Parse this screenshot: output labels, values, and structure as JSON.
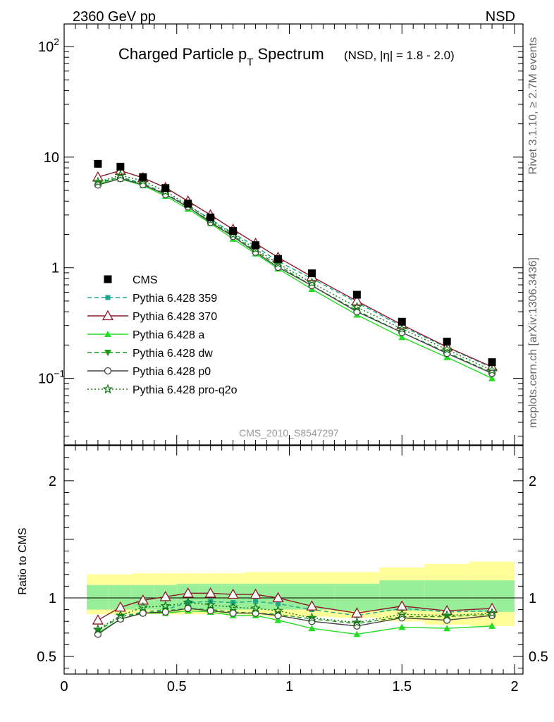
{
  "header": {
    "left": "2360 GeV pp",
    "right": "NSD"
  },
  "side_labels": {
    "rivet": "Rivet 3.1.10, ≥ 2.7M events",
    "mcplots": "mcplots.cern.ch [arXiv:1306.3436]"
  },
  "plot": {
    "title_main": "Charged Particle p",
    "title_sub": "T",
    "title_tail": " Spectrum",
    "title_note": "(NSD, |η| = 1.8 - 2.0)",
    "watermark": "CMS_2010_S8547297",
    "ratio_ylabel": "Ratio to CMS"
  },
  "ticks": {
    "top_y": [
      {
        "value": 100,
        "label": "10",
        "sup": "2"
      },
      {
        "value": 10,
        "label": "10",
        "sup": ""
      },
      {
        "value": 1,
        "label": "1",
        "sup": ""
      },
      {
        "value": 0.1,
        "label": "10",
        "sup": "−1"
      }
    ],
    "ratio_y": [
      {
        "value": 2,
        "label": "2"
      },
      {
        "value": 1,
        "label": "1"
      },
      {
        "value": 0.5,
        "label": "0.5"
      }
    ],
    "x": [
      {
        "value": 0,
        "label": "0"
      },
      {
        "value": 0.5,
        "label": "0.5"
      },
      {
        "value": 1,
        "label": "1"
      },
      {
        "value": 1.5,
        "label": "1.5"
      },
      {
        "value": 2,
        "label": "2"
      }
    ]
  },
  "chart_data": {
    "type": "line",
    "title": "Charged Particle pT Spectrum (NSD, |η| = 1.8 - 2.0)",
    "xlim": [
      0,
      2.05
    ],
    "ylim": [
      0.025,
      160
    ],
    "yscale": "log",
    "ratio_ylim": [
      0.35,
      2.3
    ],
    "x": [
      0.15,
      0.25,
      0.35,
      0.45,
      0.55,
      0.65,
      0.75,
      0.85,
      0.95,
      1.1,
      1.3,
      1.5,
      1.7,
      1.9
    ],
    "bin_edges": [
      0.1,
      0.2,
      0.3,
      0.4,
      0.5,
      0.6,
      0.7,
      0.8,
      0.9,
      1.0,
      1.2,
      1.4,
      1.6,
      1.8,
      2.0
    ],
    "data": {
      "name": "CMS",
      "color": "#000000",
      "values": [
        8.7,
        8.2,
        6.6,
        5.25,
        3.8,
        2.85,
        2.15,
        1.6,
        1.2,
        0.89,
        0.57,
        0.325,
        0.215,
        0.14
      ]
    },
    "series": [
      {
        "name": "Pythia 6.428 359",
        "color": "#19a98f",
        "style": "dashed",
        "marker": "square",
        "values": [
          5.9,
          6.6,
          5.8,
          4.65,
          3.65,
          2.75,
          2.05,
          1.56,
          1.14,
          0.8,
          0.485,
          0.295,
          0.19,
          0.125
        ],
        "ratio": [
          0.72,
          0.84,
          0.88,
          0.9,
          0.96,
          0.97,
          0.96,
          0.97,
          0.95,
          0.9,
          0.85,
          0.91,
          0.88,
          0.89
        ]
      },
      {
        "name": "Pythia 6.428 370",
        "color": "#8b1a2a",
        "style": "solid",
        "marker": "triangle-open",
        "values": [
          6.6,
          7.55,
          6.5,
          5.3,
          4.0,
          3.0,
          2.22,
          1.66,
          1.24,
          0.83,
          0.5,
          0.305,
          0.192,
          0.127
        ],
        "ratio": [
          0.81,
          0.92,
          0.98,
          1.01,
          1.04,
          1.04,
          1.03,
          1.03,
          1.0,
          0.93,
          0.87,
          0.93,
          0.89,
          0.91
        ]
      },
      {
        "name": "Pythia 6.428 a",
        "color": "#22dd22",
        "style": "solid",
        "marker": "triangle",
        "values": [
          5.75,
          6.35,
          5.55,
          4.45,
          3.4,
          2.52,
          1.82,
          1.34,
          0.98,
          0.64,
          0.375,
          0.235,
          0.155,
          0.1
        ],
        "ratio": [
          0.7,
          0.82,
          0.87,
          0.87,
          0.89,
          0.88,
          0.85,
          0.85,
          0.81,
          0.74,
          0.69,
          0.75,
          0.74,
          0.76
        ]
      },
      {
        "name": "Pythia 6.428 dw",
        "color": "#1a9a1a",
        "style": "dashed",
        "marker": "triangle-down",
        "values": [
          5.85,
          6.55,
          5.7,
          4.65,
          3.55,
          2.62,
          1.95,
          1.42,
          1.05,
          0.69,
          0.41,
          0.26,
          0.172,
          0.112
        ],
        "ratio": [
          0.72,
          0.84,
          0.87,
          0.89,
          0.91,
          0.9,
          0.88,
          0.87,
          0.86,
          0.82,
          0.78,
          0.84,
          0.84,
          0.86
        ]
      },
      {
        "name": "Pythia 6.428 p0",
        "color": "#444444",
        "style": "solid",
        "marker": "circle-open",
        "values": [
          5.6,
          6.4,
          5.65,
          4.6,
          3.55,
          2.57,
          1.92,
          1.38,
          1.01,
          0.69,
          0.4,
          0.26,
          0.168,
          0.111
        ],
        "ratio": [
          0.69,
          0.82,
          0.87,
          0.88,
          0.91,
          0.89,
          0.87,
          0.87,
          0.85,
          0.8,
          0.76,
          0.83,
          0.81,
          0.85
        ]
      },
      {
        "name": "Pythia 6.428 pro-q2o",
        "color": "#127812",
        "style": "dotted",
        "marker": "star-open",
        "values": [
          5.95,
          6.85,
          6.1,
          4.9,
          3.7,
          2.7,
          2.0,
          1.48,
          1.09,
          0.73,
          0.44,
          0.28,
          0.182,
          0.118
        ],
        "ratio": [
          0.73,
          0.85,
          0.92,
          0.93,
          0.96,
          0.94,
          0.92,
          0.91,
          0.89,
          0.83,
          0.79,
          0.86,
          0.85,
          0.87
        ]
      }
    ],
    "uncertainty_bands": {
      "inner_color": "#99ee99",
      "outer_color": "#ffff99",
      "inner": [
        [
          0.9,
          1.11
        ],
        [
          0.9,
          1.11
        ],
        [
          0.9,
          1.11
        ],
        [
          0.9,
          1.11
        ],
        [
          0.9,
          1.12
        ],
        [
          0.9,
          1.12
        ],
        [
          0.9,
          1.12
        ],
        [
          0.9,
          1.12
        ],
        [
          0.9,
          1.12
        ],
        [
          0.9,
          1.12
        ],
        [
          0.89,
          1.12
        ],
        [
          0.89,
          1.15
        ],
        [
          0.89,
          1.15
        ],
        [
          0.88,
          1.15
        ]
      ],
      "outer": [
        [
          0.86,
          1.2
        ],
        [
          0.86,
          1.2
        ],
        [
          0.86,
          1.21
        ],
        [
          0.86,
          1.21
        ],
        [
          0.86,
          1.21
        ],
        [
          0.86,
          1.21
        ],
        [
          0.86,
          1.21
        ],
        [
          0.85,
          1.22
        ],
        [
          0.84,
          1.22
        ],
        [
          0.84,
          1.22
        ],
        [
          0.83,
          1.22
        ],
        [
          0.8,
          1.26
        ],
        [
          0.77,
          1.29
        ],
        [
          0.76,
          1.31
        ]
      ]
    }
  }
}
